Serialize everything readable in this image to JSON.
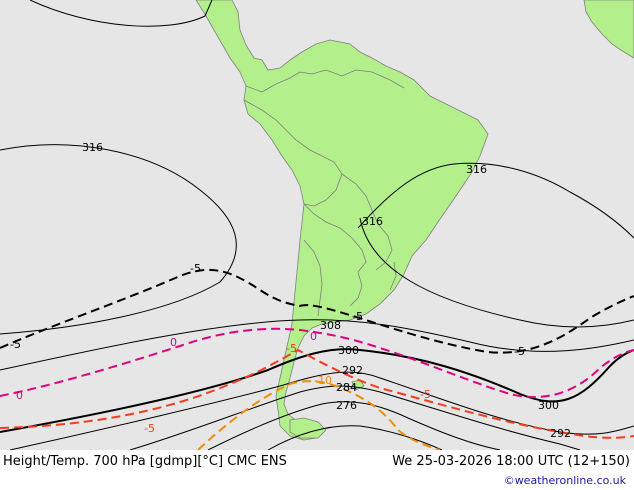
{
  "footer": {
    "title": "Height/Temp. 700 hPa [gdmp][°C] CMC ENS",
    "datetime": "We 25-03-2026 18:00 UTC (12+150)",
    "credit": "©weatheronline.co.uk"
  },
  "colors": {
    "ocean": "#e6e6e6",
    "land": "#b3f08c",
    "border": "#7f7f7f",
    "height_contour": "#000000",
    "temp_neg5": "#000000",
    "temp_0": "#e0007f",
    "temp_pos5": "#f43c1e",
    "temp_neg10": "#f08c00"
  },
  "height_labels": [
    "316",
    "316",
    "316",
    "308",
    "300",
    "300",
    "292",
    "292",
    "284",
    "276"
  ],
  "temp_labels": [
    "-5",
    "-5",
    "-5",
    "-5",
    "0",
    "0",
    "0",
    "-5",
    "-10",
    "-5",
    "-5"
  ]
}
